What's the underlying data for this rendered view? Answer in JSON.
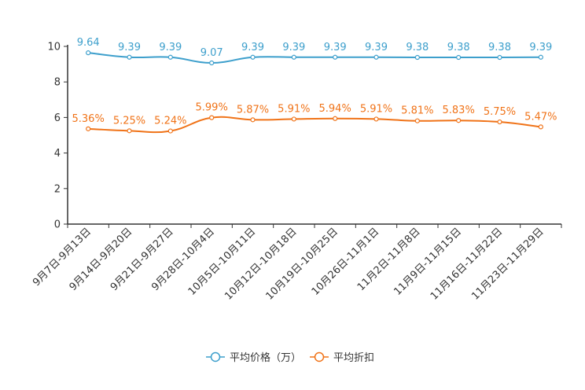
{
  "chart_data": {
    "type": "line",
    "title": "",
    "xlabel": "",
    "ylabel": "",
    "ylim": [
      0,
      10
    ],
    "yticks": [
      0,
      2,
      4,
      6,
      8,
      10
    ],
    "grid": false,
    "legend_position": "bottom-center",
    "categories": [
      "9月7日-9月13日",
      "9月14日-9月20日",
      "9月21日-9月27日",
      "9月28日-10月4日",
      "10月5日-10月11日",
      "10月12日-10月18日",
      "10月19日-10月25日",
      "10月26日-11月1日",
      "11月2日-11月8日",
      "11月9日-11月15日",
      "11月16日-11月22日",
      "11月23日-11月29日"
    ],
    "series": [
      {
        "name": "平均价格（万）",
        "color": "#3d9fcc",
        "values": [
          9.64,
          9.39,
          9.39,
          9.07,
          9.39,
          9.39,
          9.39,
          9.39,
          9.38,
          9.38,
          9.38,
          9.39
        ],
        "labels": [
          "9.64",
          "9.39",
          "9.39",
          "9.07",
          "9.39",
          "9.39",
          "9.39",
          "9.39",
          "9.38",
          "9.38",
          "9.38",
          "9.39"
        ]
      },
      {
        "name": "平均折扣",
        "color": "#f07318",
        "values": [
          5.36,
          5.25,
          5.24,
          5.99,
          5.87,
          5.91,
          5.94,
          5.91,
          5.81,
          5.83,
          5.75,
          5.47
        ],
        "labels": [
          "5.36%",
          "5.25%",
          "5.24%",
          "5.99%",
          "5.87%",
          "5.91%",
          "5.94%",
          "5.91%",
          "5.81%",
          "5.83%",
          "5.75%",
          "5.47%"
        ]
      }
    ]
  }
}
